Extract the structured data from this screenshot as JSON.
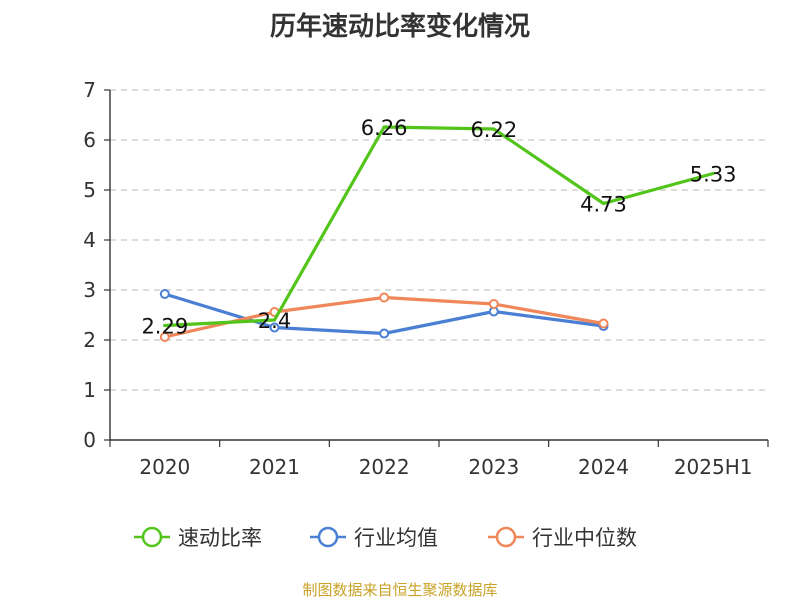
{
  "title": "历年速动比率变化情况",
  "source": "制图数据来自恒生聚源数据库",
  "chart_data": {
    "type": "line",
    "title": "历年速动比率变化情况",
    "x": [
      "2020",
      "2021",
      "2022",
      "2023",
      "2024",
      "2025H1"
    ],
    "ylim": [
      0,
      7
    ],
    "yticks": [
      "0",
      "1",
      "2",
      "3",
      "4",
      "5",
      "6",
      "7"
    ],
    "grid": true,
    "legend_position": "bottom",
    "series": [
      {
        "name": "速动比率",
        "color": "#52c41a",
        "values": [
          2.29,
          2.4,
          6.26,
          6.22,
          4.73,
          5.33
        ],
        "labels": [
          "2.29",
          "2.4",
          "6.26",
          "6.22",
          "4.73",
          "5.33"
        ],
        "markers": false
      },
      {
        "name": "行业均值",
        "color": "#4a7fd4",
        "values": [
          2.92,
          2.25,
          2.13,
          2.57,
          2.28,
          null
        ],
        "markers": true
      },
      {
        "name": "行业中位数",
        "color": "#f0875a",
        "values": [
          2.06,
          2.56,
          2.85,
          2.72,
          2.33,
          null
        ],
        "markers": true
      }
    ]
  }
}
